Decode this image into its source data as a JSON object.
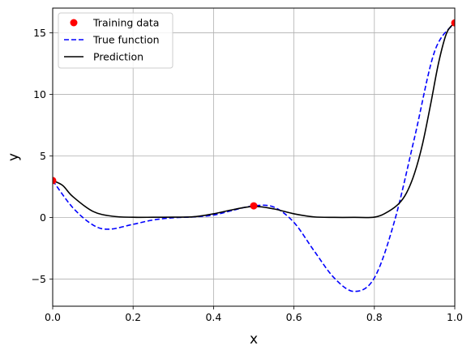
{
  "chart_data": {
    "type": "line",
    "title": "",
    "xlabel": "x",
    "ylabel": "y",
    "xlim": [
      0,
      1
    ],
    "ylim": [
      -7.2,
      17.0
    ],
    "xticks": [
      0.0,
      0.2,
      0.4,
      0.6,
      0.8,
      1.0
    ],
    "xtick_labels": [
      "0.0",
      "0.2",
      "0.4",
      "0.6",
      "0.8",
      "1.0"
    ],
    "yticks": [
      -5,
      0,
      5,
      10,
      15
    ],
    "ytick_labels": [
      "−5",
      "0",
      "5",
      "10",
      "15"
    ],
    "grid": true,
    "legend_position": "upper-left",
    "series": [
      {
        "name": "Training data",
        "style": "markers",
        "color": "#ff0000",
        "x": [
          0.0,
          0.5,
          1.0
        ],
        "y": [
          3.0,
          0.95,
          15.8
        ]
      },
      {
        "name": "True function",
        "style": "dashed",
        "color": "#0000ff",
        "x": [
          0.0,
          0.05,
          0.1,
          0.14,
          0.2,
          0.25,
          0.3,
          0.35,
          0.4,
          0.45,
          0.5,
          0.55,
          0.6,
          0.65,
          0.7,
          0.75,
          0.8,
          0.85,
          0.9,
          0.95,
          1.0
        ],
        "y": [
          3.0,
          0.8,
          -0.6,
          -0.95,
          -0.55,
          -0.2,
          -0.02,
          0.05,
          0.2,
          0.6,
          0.95,
          0.85,
          -0.4,
          -2.7,
          -4.9,
          -6.0,
          -4.9,
          -0.3,
          6.5,
          13.5,
          15.8
        ]
      },
      {
        "name": "Prediction",
        "style": "solid",
        "color": "#000000",
        "x": [
          0.0,
          0.025,
          0.05,
          0.1,
          0.15,
          0.2,
          0.25,
          0.3,
          0.35,
          0.4,
          0.45,
          0.5,
          0.55,
          0.6,
          0.65,
          0.7,
          0.75,
          0.8,
          0.83,
          0.86,
          0.88,
          0.9,
          0.92,
          0.94,
          0.96,
          0.98,
          1.0
        ],
        "y": [
          3.0,
          2.6,
          1.7,
          0.5,
          0.1,
          0.02,
          0.02,
          0.03,
          0.06,
          0.3,
          0.65,
          0.9,
          0.7,
          0.3,
          0.05,
          0.01,
          0.01,
          0.03,
          0.4,
          1.1,
          2.0,
          3.6,
          6.0,
          9.2,
          12.6,
          15.0,
          15.8
        ]
      }
    ]
  }
}
